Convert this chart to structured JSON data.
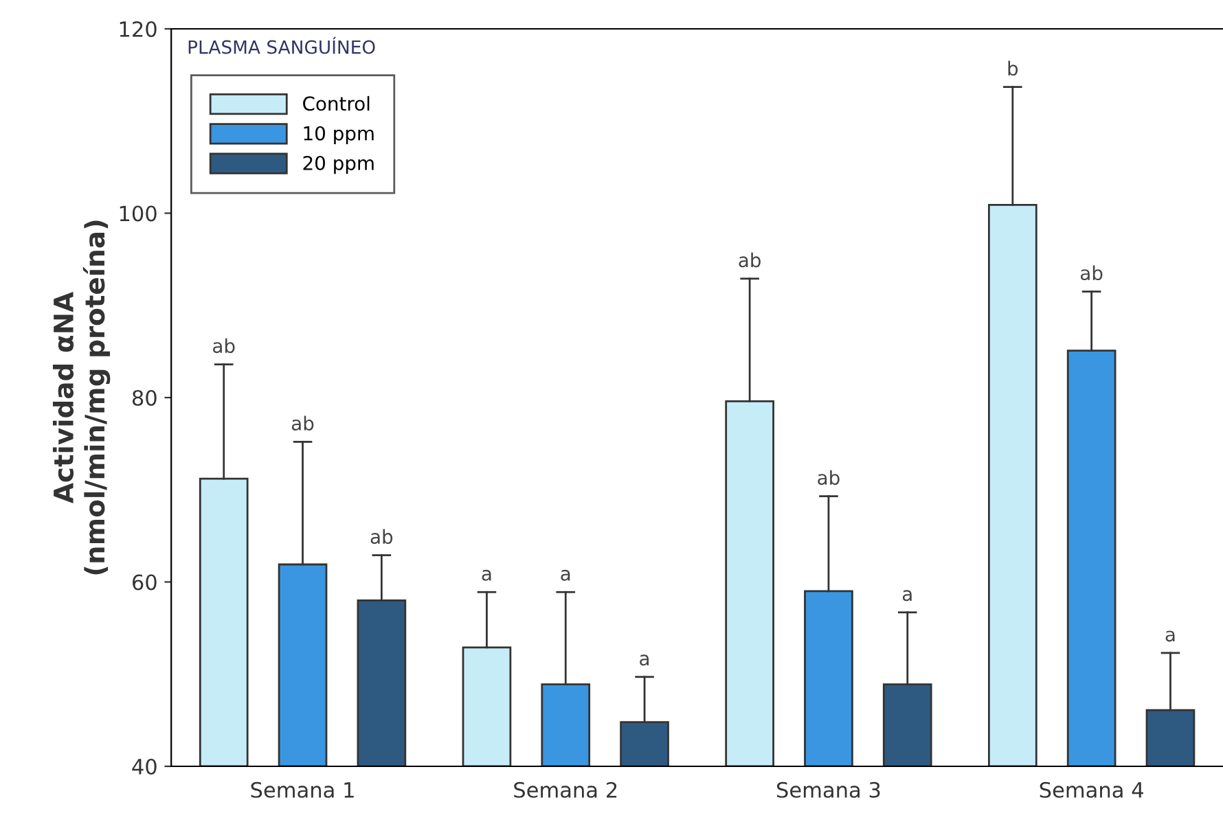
{
  "chart_data": {
    "type": "bar",
    "ylabel": "Actividad αNA\n(nmol/min/mg proteína)",
    "legend_title": "PLASMA SANGUÍNEO",
    "categories": [
      "Semana 1",
      "Semana 2",
      "Semana 3",
      "Semana 4"
    ],
    "series": [
      {
        "name": "Control",
        "color": "#c6ecf8",
        "values": [
          71.2,
          52.9,
          79.6,
          100.9
        ],
        "errors": [
          [
            71.2,
            83.6
          ],
          [
            52.9,
            58.9
          ],
          [
            79.6,
            92.9
          ],
          [
            100.9,
            113.7
          ]
        ]
      },
      {
        "name": "10 ppm",
        "color": "#3a96e0",
        "values": [
          61.9,
          48.9,
          59.0,
          85.1
        ],
        "errors": [
          [
            61.9,
            75.2
          ],
          [
            48.9,
            58.9
          ],
          [
            59.0,
            69.3
          ],
          [
            85.1,
            91.5
          ]
        ]
      },
      {
        "name": "20 ppm",
        "color": "#2e5a82",
        "values": [
          58.0,
          44.8,
          48.9,
          46.1
        ],
        "errors": [
          [
            58.0,
            62.9
          ],
          [
            44.8,
            49.7
          ],
          [
            48.9,
            56.7
          ],
          [
            46.1,
            52.3
          ]
        ]
      }
    ],
    "annotations": [
      "ab",
      "a",
      "ab",
      "b",
      "ab",
      "a",
      "ab",
      "ab",
      "ab",
      "a",
      "a",
      "a"
    ],
    "ylim": [
      40,
      120
    ],
    "yticks": [
      40,
      60,
      80,
      100,
      120
    ],
    "grid": false,
    "legend": "top left"
  }
}
